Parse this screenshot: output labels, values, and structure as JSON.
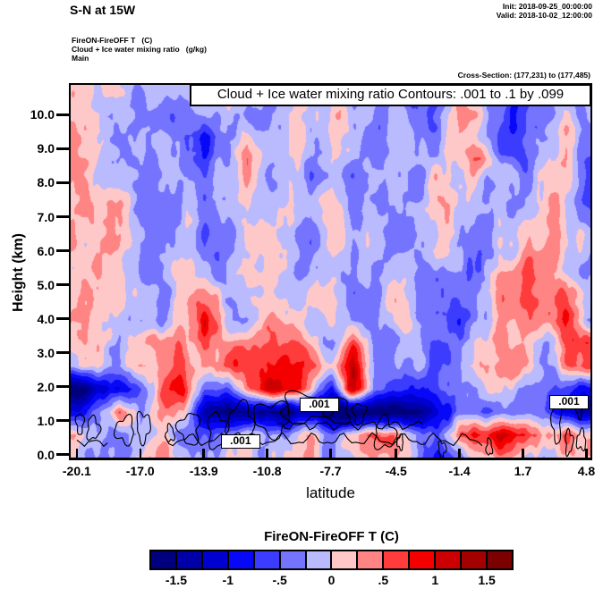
{
  "header": {
    "title": "S-N at 15W",
    "init": "Init: 2018-09-25_00:00:00",
    "valid": "Valid: 2018-10-02_12:00:00"
  },
  "subheader": {
    "line1": "FireON-FireOFF T   (C)",
    "line2": "Cloud + Ice water mixing ratio   (g/kg)",
    "line3": "Main",
    "cross_section": "Cross-Section: (177,231) to (177,485)"
  },
  "chart_data": {
    "type": "heatmap",
    "banner": "Cloud + Ice water mixing ratio Contours: .001 to .1 by .099",
    "xlabel": "latitude",
    "ylabel": "Height (km)",
    "x_ticks": [
      "-20.1",
      "-17.0",
      "-13.9",
      "-10.8",
      "-7.7",
      "-4.5",
      "-1.4",
      "1.7",
      "4.8"
    ],
    "y_ticks": [
      "0.0",
      "1.0",
      "2.0",
      "3.0",
      "4.0",
      "5.0",
      "6.0",
      "7.0",
      "8.0",
      "9.0",
      "10.0"
    ],
    "x_range": [
      -20.1,
      4.8
    ],
    "y_range_km": [
      0,
      10.9
    ],
    "field_name": "FireON-FireOFF temperature difference",
    "field_units": "C",
    "grid_lat": [
      -20.1,
      -19.06,
      -18.03,
      -16.99,
      -15.95,
      -14.91,
      -13.88,
      -12.84,
      -11.8,
      -10.76,
      -9.73,
      -8.69,
      -7.65,
      -6.61,
      -5.58,
      -4.54,
      -3.5,
      -2.46,
      -1.43,
      -0.39,
      0.65,
      1.69,
      2.73,
      3.76,
      4.8
    ],
    "grid_km": [
      10.8,
      10.12,
      9.45,
      8.78,
      8.1,
      7.42,
      6.75,
      6.08,
      5.4,
      4.72,
      4.05,
      3.38,
      2.7,
      2.02,
      1.35,
      0.68,
      0.0
    ],
    "values": [
      [
        0.2,
        0.12,
        -0.12,
        -0.15,
        -0.15,
        -0.35,
        -0.15,
        0.12,
        -0.12,
        -0.15,
        0.12,
        -0.12,
        0.12,
        -0.15,
        -0.12,
        -0.12,
        -0.55,
        -0.35,
        0.12,
        0.12,
        -0.4,
        -0.6,
        -0.35,
        -0.12,
        -0.15
      ],
      [
        0.22,
        0.12,
        -0.12,
        -0.2,
        -0.2,
        -0.3,
        -0.25,
        0.12,
        -0.15,
        -0.2,
        0.12,
        -0.15,
        0.15,
        -0.12,
        -0.2,
        -0.15,
        -0.6,
        -0.3,
        0.15,
        0.12,
        -0.55,
        -0.65,
        -0.4,
        -0.12,
        -0.2
      ],
      [
        0.25,
        0.12,
        -0.15,
        -0.25,
        -0.2,
        -0.55,
        -0.8,
        -0.2,
        0.12,
        -0.25,
        0.12,
        -0.2,
        0.12,
        -0.2,
        -0.25,
        -0.12,
        -0.45,
        -0.2,
        0.12,
        -0.15,
        -0.5,
        -0.65,
        -0.3,
        0.12,
        -0.25
      ],
      [
        0.25,
        0.1,
        -0.2,
        -0.3,
        -0.25,
        -0.5,
        -0.65,
        -0.25,
        0.45,
        -0.2,
        0.1,
        -0.25,
        0.12,
        -0.25,
        -0.2,
        -0.15,
        -0.3,
        -0.15,
        0.1,
        0.4,
        -0.45,
        -0.5,
        -0.2,
        0.12,
        -0.5
      ],
      [
        0.25,
        0.1,
        -0.15,
        -0.3,
        -0.3,
        -0.35,
        -0.4,
        -0.2,
        0.2,
        -0.15,
        0.12,
        -0.3,
        0.1,
        -0.3,
        -0.15,
        -0.2,
        -0.25,
        0.1,
        0.12,
        -0.25,
        -0.3,
        -0.35,
        -0.15,
        0.12,
        -0.55
      ],
      [
        0.25,
        0.15,
        0.45,
        -0.25,
        -0.35,
        -0.2,
        -0.3,
        -0.15,
        0.12,
        -0.12,
        0.15,
        -0.35,
        0.1,
        -0.35,
        -0.12,
        -0.25,
        -0.2,
        0.12,
        0.1,
        -0.3,
        -0.2,
        -0.25,
        0.12,
        0.15,
        -0.45
      ],
      [
        0.25,
        0.12,
        0.2,
        -0.2,
        -0.4,
        -0.15,
        -0.35,
        -0.3,
        -0.12,
        0.12,
        0.12,
        -0.4,
        0.12,
        -0.3,
        -0.15,
        -0.3,
        -0.12,
        0.15,
        -0.12,
        -0.35,
        -0.15,
        0.12,
        0.15,
        0.12,
        -0.3
      ],
      [
        0.25,
        0.12,
        0.15,
        -0.25,
        -0.35,
        -0.12,
        -0.4,
        -0.35,
        -0.15,
        0.12,
        0.1,
        -0.3,
        0.15,
        -0.25,
        -0.2,
        -0.15,
        -0.12,
        0.15,
        -0.3,
        -0.4,
        -0.12,
        0.15,
        0.3,
        0.12,
        -0.2
      ],
      [
        0.2,
        0.12,
        0.12,
        -0.3,
        -0.3,
        0.12,
        -0.3,
        -0.25,
        0.12,
        0.15,
        -0.12,
        -0.25,
        0.12,
        -0.2,
        -0.25,
        0.12,
        -0.15,
        -0.5,
        -0.55,
        -0.3,
        0.5,
        0.45,
        0.2,
        0.12,
        -0.25
      ],
      [
        0.2,
        0.15,
        0.12,
        -0.25,
        -0.25,
        0.15,
        0.5,
        -0.2,
        0.12,
        0.2,
        -0.12,
        -0.2,
        0.15,
        -0.25,
        -0.3,
        0.15,
        -0.2,
        -0.55,
        -0.7,
        -0.25,
        0.3,
        0.5,
        0.45,
        0.6,
        -0.3
      ],
      [
        0.15,
        0.12,
        -0.12,
        -0.3,
        -0.2,
        0.2,
        0.8,
        -0.12,
        -0.2,
        0.25,
        0.12,
        -0.15,
        0.2,
        -0.3,
        -0.25,
        0.2,
        -0.25,
        -0.45,
        -0.85,
        -0.2,
        0.2,
        0.45,
        0.45,
        0.75,
        -0.2
      ],
      [
        0.12,
        0.15,
        -0.2,
        0.3,
        0.5,
        0.3,
        0.45,
        0.3,
        0.45,
        0.5,
        0.45,
        0.2,
        -0.15,
        0.6,
        -0.2,
        -0.3,
        -0.2,
        -0.6,
        -0.45,
        0.15,
        0.3,
        0.2,
        -0.3,
        0.5,
        0.9
      ],
      [
        0.12,
        -0.12,
        -0.25,
        0.45,
        0.3,
        0.45,
        0.3,
        0.45,
        0.7,
        0.85,
        0.7,
        0.5,
        0.3,
        1.1,
        -0.3,
        -0.35,
        -0.3,
        -0.5,
        -0.35,
        0.25,
        0.45,
        0.3,
        -0.35,
        0.3,
        0.9
      ],
      [
        -1.6,
        -1.4,
        -0.9,
        -0.6,
        0.5,
        0.9,
        -0.4,
        -0.7,
        0.4,
        1.1,
        1.0,
        0.3,
        -0.8,
        1.2,
        -0.5,
        -0.5,
        -0.8,
        -0.55,
        -0.5,
        -0.3,
        0.12,
        -0.3,
        -0.35,
        -0.6,
        -0.85
      ],
      [
        -0.9,
        -0.4,
        0.6,
        -0.5,
        0.6,
        0.3,
        -1.3,
        -1.6,
        -1.4,
        -1.7,
        -1.7,
        -1.5,
        -1.8,
        -1.8,
        -1.7,
        -1.7,
        -1.5,
        -0.9,
        -0.6,
        -0.5,
        -0.35,
        -0.5,
        -0.4,
        -1.2,
        -1.3
      ],
      [
        0.45,
        -0.3,
        -0.35,
        -0.2,
        0.12,
        -0.3,
        -0.5,
        -0.2,
        0.12,
        -0.35,
        -0.3,
        0.15,
        -0.4,
        0.2,
        0.5,
        0.4,
        -0.2,
        -0.4,
        0.5,
        0.9,
        1.1,
        0.7,
        0.25,
        0.45,
        0.2
      ],
      [
        0.12,
        -0.45,
        -0.4,
        0.15,
        0.15,
        0.12,
        -0.25,
        0.12,
        0.12,
        -0.3,
        0.12,
        0.15,
        -0.3,
        -0.2,
        0.12,
        0.15,
        -0.15,
        -1.0,
        -0.3,
        0.3,
        0.25,
        0.15,
        -0.25,
        0.12,
        0.15
      ]
    ],
    "contours": {
      "levels": [
        0.001,
        0.1
      ],
      "loops": [
        [
          -19.95,
          1.0,
          0.18,
          0.3
        ],
        [
          -19.3,
          0.85,
          0.3,
          0.33
        ],
        [
          -17.75,
          0.8,
          0.45,
          0.38
        ],
        [
          -16.85,
          0.9,
          0.32,
          0.42
        ],
        [
          -15.55,
          0.7,
          0.2,
          0.24
        ],
        [
          -14.6,
          0.85,
          0.5,
          0.45
        ],
        [
          -13.25,
          0.8,
          0.45,
          0.5
        ],
        [
          -12.1,
          1.05,
          0.65,
          0.5
        ],
        [
          -10.55,
          1.15,
          0.85,
          0.48
        ],
        [
          -9.0,
          1.45,
          1.15,
          0.42
        ],
        [
          -7.35,
          1.35,
          0.55,
          0.38
        ],
        [
          -6.3,
          1.3,
          0.3,
          0.3
        ],
        [
          -5.05,
          0.7,
          0.5,
          0.45
        ],
        [
          -4.3,
          0.45,
          0.15,
          0.2
        ],
        [
          -2.25,
          0.25,
          0.18,
          0.22
        ],
        [
          0.05,
          0.3,
          0.14,
          0.24
        ],
        [
          3.35,
          1.05,
          0.22,
          0.6
        ],
        [
          3.95,
          0.45,
          0.18,
          0.35
        ],
        [
          4.55,
          0.5,
          0.22,
          0.28
        ],
        [
          4.45,
          1.5,
          0.2,
          0.3
        ]
      ],
      "wavy_lines": [
        [
          -15.8,
          -0.3,
          0.52,
          0.14,
          2.0
        ],
        [
          -10.3,
          -3.2,
          0.95,
          0.1,
          2.6
        ],
        [
          -20.1,
          -18.6,
          0.45,
          0.08,
          3.0
        ]
      ],
      "boxed_labels": [
        {
          "text": ".001",
          "lat": -12.1,
          "km": 0.48
        },
        {
          "text": ".001",
          "lat": -8.25,
          "km": 1.55
        },
        {
          "text": ".001",
          "lat": 3.95,
          "km": 1.62
        }
      ]
    },
    "colorbar": {
      "title": "FireON-FireOFF T  (C)",
      "tick_labels": [
        "-1.5",
        "-1",
        "-.5",
        "0",
        ".5",
        "1",
        "1.5"
      ],
      "bin_min": -1.75,
      "bin_step": 0.25,
      "colors": [
        "#00007e",
        "#0000a8",
        "#0000d0",
        "#0808f8",
        "#3c3cff",
        "#7474ff",
        "#babaff",
        "#ffc8c8",
        "#ff8484",
        "#ff3c3c",
        "#f40000",
        "#cc0000",
        "#a30000",
        "#7c0000"
      ]
    }
  }
}
